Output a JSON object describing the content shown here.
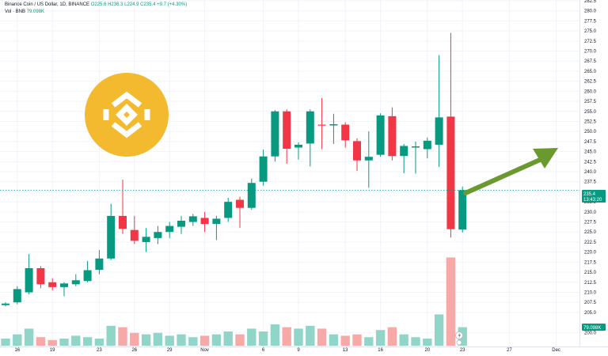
{
  "header": {
    "pair": "Binance Coin / US Dollar, 1D, BINANCE",
    "open": "O225.6",
    "high": "H236.3",
    "low": "L224.9",
    "close": "C235.4",
    "change": "+9.7 (+4.30%)",
    "vol_label": "Vol · BNB",
    "vol_value": "79.098K"
  },
  "price_label": {
    "price": "235.4",
    "countdown": "13:43:20"
  },
  "volume_label": "79.098K",
  "colors": {
    "up": "#089981",
    "down": "#F23645",
    "vol_up": "#91D5C9",
    "vol_down": "#F7A9A7",
    "arrow": "#6A9A2F",
    "logo": "#F3BA2F"
  },
  "icons": {
    "logo": "bnb-logo-icon",
    "arrow": "trend-arrow-icon",
    "lightning": "lightning-icon"
  },
  "chart_data": {
    "type": "candlestick",
    "y_axis": {
      "range": [
        197.5,
        282.5
      ],
      "ticks": [
        200,
        205,
        207.5,
        210,
        212.5,
        215,
        217.5,
        220,
        222.5,
        225,
        227.5,
        230,
        232.5,
        235,
        237.5,
        240,
        242.5,
        245,
        247.5,
        250,
        252.5,
        255,
        257.5,
        260,
        262.5,
        265,
        267.5,
        270,
        272.5,
        275,
        277.5,
        280,
        282.5
      ],
      "tick_labels": [
        "200.0",
        "205.0",
        "207.5",
        "210.0",
        "212.5",
        "215.0",
        "217.5",
        "220.0",
        "222.5",
        "225.0",
        "227.5",
        "230.0",
        "232.5",
        "235.0",
        "237.5",
        "240.0",
        "242.5",
        "245.0",
        "247.5",
        "250.0",
        "252.5",
        "255.0",
        "257.5",
        "260.0",
        "262.5",
        "265.0",
        "267.5",
        "270.0",
        "272.5",
        "275.0",
        "277.5",
        "280.0",
        "282.5"
      ],
      "position": "right"
    },
    "x_axis": {
      "ticks": [
        {
          "label": "16",
          "index": 1
        },
        {
          "label": "19",
          "index": 4
        },
        {
          "label": "23",
          "index": 8
        },
        {
          "label": "26",
          "index": 11
        },
        {
          "label": "29",
          "index": 14
        },
        {
          "label": "Nov",
          "index": 17
        },
        {
          "label": "6",
          "index": 22
        },
        {
          "label": "9",
          "index": 25
        },
        {
          "label": "13",
          "index": 29
        },
        {
          "label": "16",
          "index": 32
        },
        {
          "label": "20",
          "index": 36
        },
        {
          "label": "23",
          "index": 39
        },
        {
          "label": "27",
          "index": 43
        },
        {
          "label": "Dec",
          "index": 47
        }
      ]
    },
    "candles": [
      {
        "o": 206.8,
        "h": 207.5,
        "l": 206.5,
        "c": 207.2,
        "v": 5
      },
      {
        "o": 207.5,
        "h": 211.5,
        "l": 207.0,
        "c": 210.8,
        "v": 8
      },
      {
        "o": 210.0,
        "h": 219.5,
        "l": 209.5,
        "c": 216.0,
        "v": 12
      },
      {
        "o": 216.0,
        "h": 216.5,
        "l": 211.0,
        "c": 212.0,
        "v": 6
      },
      {
        "o": 212.5,
        "h": 213.5,
        "l": 210.5,
        "c": 211.3,
        "v": 4
      },
      {
        "o": 211.3,
        "h": 212.5,
        "l": 209.0,
        "c": 212.2,
        "v": 5
      },
      {
        "o": 212.0,
        "h": 214.5,
        "l": 211.5,
        "c": 213.0,
        "v": 7
      },
      {
        "o": 212.8,
        "h": 217.8,
        "l": 212.5,
        "c": 215.5,
        "v": 6
      },
      {
        "o": 215.6,
        "h": 220.5,
        "l": 214.5,
        "c": 218.4,
        "v": 5
      },
      {
        "o": 218.4,
        "h": 232.0,
        "l": 218.0,
        "c": 229.0,
        "v": 14
      },
      {
        "o": 229.0,
        "h": 238.0,
        "l": 224.5,
        "c": 225.8,
        "v": 13
      },
      {
        "o": 225.5,
        "h": 229.0,
        "l": 222.0,
        "c": 222.8,
        "v": 9
      },
      {
        "o": 222.5,
        "h": 226.0,
        "l": 220.0,
        "c": 223.8,
        "v": 8
      },
      {
        "o": 223.5,
        "h": 226.5,
        "l": 222.0,
        "c": 225.0,
        "v": 9
      },
      {
        "o": 225.0,
        "h": 227.5,
        "l": 223.5,
        "c": 226.5,
        "v": 7
      },
      {
        "o": 226.3,
        "h": 229.0,
        "l": 224.5,
        "c": 227.8,
        "v": 8
      },
      {
        "o": 227.5,
        "h": 229.5,
        "l": 226.5,
        "c": 228.9,
        "v": 6
      },
      {
        "o": 228.5,
        "h": 230.0,
        "l": 225.0,
        "c": 227.0,
        "v": 7
      },
      {
        "o": 227.0,
        "h": 229.0,
        "l": 223.0,
        "c": 228.3,
        "v": 8
      },
      {
        "o": 228.5,
        "h": 233.5,
        "l": 227.5,
        "c": 232.5,
        "v": 10
      },
      {
        "o": 233.0,
        "h": 233.8,
        "l": 226.0,
        "c": 231.0,
        "v": 8
      },
      {
        "o": 231.0,
        "h": 238.3,
        "l": 230.5,
        "c": 237.2,
        "v": 12
      },
      {
        "o": 237.5,
        "h": 245.5,
        "l": 236.5,
        "c": 243.8,
        "v": 10
      },
      {
        "o": 243.8,
        "h": 255.3,
        "l": 242.5,
        "c": 255.0,
        "v": 15
      },
      {
        "o": 255.0,
        "h": 255.5,
        "l": 242.0,
        "c": 245.7,
        "v": 13
      },
      {
        "o": 246.0,
        "h": 247.3,
        "l": 243.0,
        "c": 246.7,
        "v": 12
      },
      {
        "o": 247.0,
        "h": 255.5,
        "l": 241.3,
        "c": 255.0,
        "v": 14
      },
      {
        "o": 251.7,
        "h": 258.3,
        "l": 245.6,
        "c": 251.5,
        "v": 12
      },
      {
        "o": 251.5,
        "h": 254.4,
        "l": 246.9,
        "c": 251.8,
        "v": 8
      },
      {
        "o": 251.7,
        "h": 252.3,
        "l": 246.0,
        "c": 247.8,
        "v": 7
      },
      {
        "o": 247.6,
        "h": 248.3,
        "l": 240.2,
        "c": 242.8,
        "v": 8
      },
      {
        "o": 242.8,
        "h": 250.0,
        "l": 236.0,
        "c": 243.7,
        "v": 6
      },
      {
        "o": 244.2,
        "h": 254.5,
        "l": 243.7,
        "c": 254.0,
        "v": 11
      },
      {
        "o": 253.8,
        "h": 256.0,
        "l": 242.8,
        "c": 243.9,
        "v": 13
      },
      {
        "o": 243.9,
        "h": 246.9,
        "l": 239.6,
        "c": 246.4,
        "v": 8
      },
      {
        "o": 246.0,
        "h": 247.5,
        "l": 239.5,
        "c": 246.3,
        "v": 6
      },
      {
        "o": 245.6,
        "h": 248.5,
        "l": 243.3,
        "c": 247.7,
        "v": 5
      },
      {
        "o": 246.7,
        "h": 269.0,
        "l": 241.2,
        "c": 253.5,
        "v": 22
      },
      {
        "o": 253.7,
        "h": 274.5,
        "l": 223.6,
        "c": 225.7,
        "v": 62
      },
      {
        "o": 225.6,
        "h": 236.3,
        "l": 224.9,
        "c": 235.4,
        "v": 13
      }
    ],
    "annotations": [
      "green trend arrow pointing up-right",
      "BNB logo"
    ]
  }
}
